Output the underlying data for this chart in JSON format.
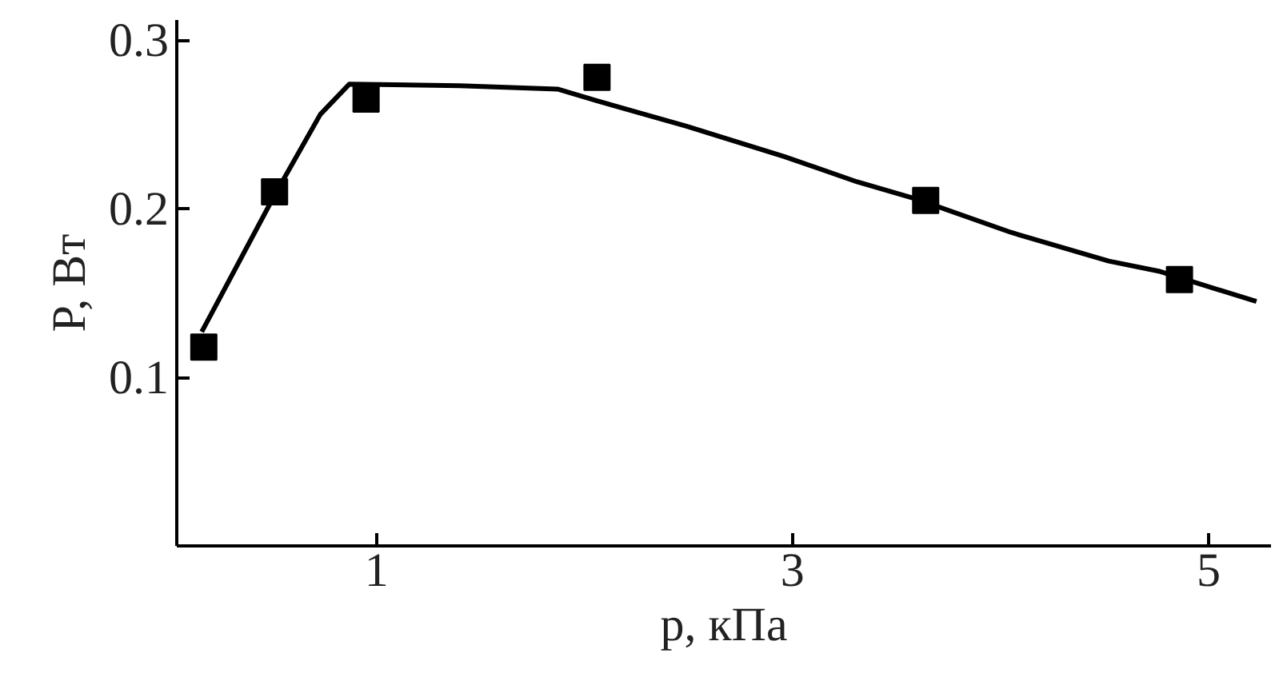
{
  "chart_data": {
    "type": "scatter",
    "xlabel": "p, кПа",
    "ylabel": "P, Вт",
    "xlim": [
      0.04,
      5.3
    ],
    "ylim": [
      0,
      0.312
    ],
    "xticks": [
      1,
      3,
      5
    ],
    "yticks": [
      0.1,
      0.2,
      0.3
    ],
    "grid": false,
    "marker": "square",
    "series": [
      {
        "color": "#000000",
        "x": [
          0.17,
          0.51,
          0.95,
          2.06,
          3.64,
          4.86
        ],
        "values": [
          0.118,
          0.21,
          0.265,
          0.278,
          0.205,
          0.158
        ]
      },
      {
        "type": "line",
        "color": "#000000",
        "marker": "none",
        "line_style": "solid",
        "x": [
          0.16,
          0.51,
          0.73,
          0.87,
          1.4,
          1.87,
          2.06,
          2.49,
          2.96,
          3.31,
          3.59,
          4.05,
          4.52,
          4.76,
          5.23
        ],
        "values": [
          0.127,
          0.208,
          0.256,
          0.274,
          0.273,
          0.271,
          0.264,
          0.249,
          0.231,
          0.216,
          0.206,
          0.186,
          0.169,
          0.163,
          0.145
        ]
      }
    ]
  }
}
